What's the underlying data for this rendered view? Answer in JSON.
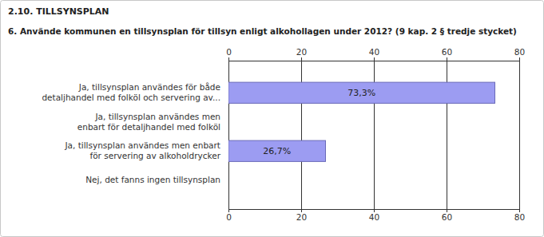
{
  "chart_data": {
    "type": "bar",
    "orientation": "horizontal",
    "title": "2.10. TILLSYNSPLAN",
    "subtitle": "6. Använde kommunen en tillsynsplan för  tillsyn enligt alkohollagen under 2012? (9 kap. 2 § tredje stycket)",
    "categories": [
      "Ja, tillsynsplan användes för både\ndetaljhandel med folköl och servering av...",
      "Ja, tillsynsplan användes men\nenbart för detaljhandel med folköl",
      "Ja, tillsynsplan användes men enbart\nför servering av alkoholdrycker",
      "Nej, det fanns ingen tillsynsplan"
    ],
    "values": [
      73.3,
      0,
      26.7,
      0
    ],
    "value_labels": [
      "73,3%",
      null,
      "26,7%",
      null
    ],
    "data_labels": true,
    "color": "#9c9cf2",
    "xlim": [
      0,
      80
    ],
    "xticks": [
      0,
      20,
      40,
      60,
      80
    ],
    "grid": true
  }
}
